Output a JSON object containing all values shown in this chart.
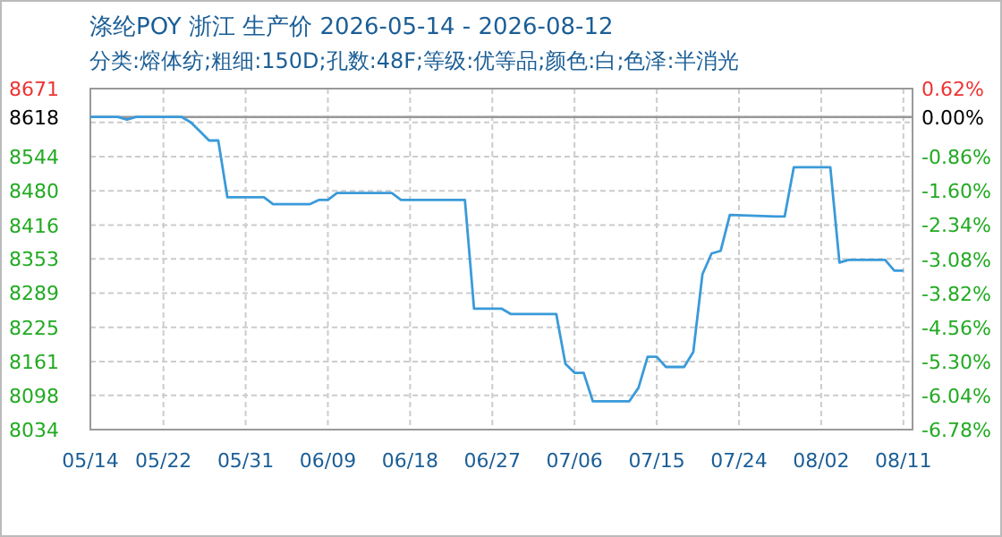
{
  "chart_data": {
    "type": "line",
    "title": "涤纶POY 浙江 生产价 2026-05-14 - 2026-08-12",
    "subtitle": "分类:熔体纺;粗细:150D;孔数:48F;等级:优等品;颜色:白;色泽:半消光",
    "x": [
      "2026-05-14",
      "2026-05-17",
      "2026-05-18",
      "2026-05-19",
      "2026-05-24",
      "2026-05-25",
      "2026-05-26",
      "2026-05-27",
      "2026-05-28",
      "2026-05-29",
      "2026-06-02",
      "2026-06-03",
      "2026-06-07",
      "2026-06-08",
      "2026-06-09",
      "2026-06-10",
      "2026-06-16",
      "2026-06-17",
      "2026-06-24",
      "2026-06-25",
      "2026-06-28",
      "2026-06-29",
      "2026-07-04",
      "2026-07-05",
      "2026-07-06",
      "2026-07-07",
      "2026-07-08",
      "2026-07-12",
      "2026-07-13",
      "2026-07-14",
      "2026-07-15",
      "2026-07-16",
      "2026-07-18",
      "2026-07-19",
      "2026-07-20",
      "2026-07-21",
      "2026-07-22",
      "2026-07-23",
      "2026-07-28",
      "2026-07-29",
      "2026-07-30",
      "2026-08-03",
      "2026-08-04",
      "2026-08-05",
      "2026-08-09",
      "2026-08-10",
      "2026-08-11"
    ],
    "series": [
      {
        "color": "#3a9ad9",
        "values": [
          8618,
          8618,
          8613,
          8618,
          8618,
          8608,
          8591,
          8574,
          8574,
          8468,
          8468,
          8455,
          8455,
          8463,
          8463,
          8476,
          8476,
          8463,
          8463,
          8260,
          8260,
          8250,
          8250,
          8157,
          8140,
          8140,
          8087,
          8087,
          8112,
          8170,
          8170,
          8151,
          8151,
          8179,
          8324,
          8363,
          8368,
          8435,
          8432,
          8432,
          8524,
          8524,
          8346,
          8351,
          8351,
          8331,
          8331
        ]
      }
    ],
    "xlim": [
      "2026-05-14",
      "2026-08-12"
    ],
    "xticks": [
      {
        "value": "2026-05-14",
        "label": "05/14"
      },
      {
        "value": "2026-05-22",
        "label": "05/22"
      },
      {
        "value": "2026-05-31",
        "label": "05/31"
      },
      {
        "value": "2026-06-09",
        "label": "06/09"
      },
      {
        "value": "2026-06-18",
        "label": "06/18"
      },
      {
        "value": "2026-06-27",
        "label": "06/27"
      },
      {
        "value": "2026-07-06",
        "label": "07/06"
      },
      {
        "value": "2026-07-15",
        "label": "07/15"
      },
      {
        "value": "2026-07-24",
        "label": "07/24"
      },
      {
        "value": "2026-08-02",
        "label": "08/02"
      },
      {
        "value": "2026-08-11",
        "label": "08/11"
      }
    ],
    "ylim": [
      8034,
      8671
    ],
    "yticks": [
      8034,
      8098,
      8161,
      8225,
      8289,
      8353,
      8416,
      8480,
      8544,
      {
        "value": 8608,
        "label": null
      },
      8618,
      8671
    ],
    "y2lim": [
      -6.78,
      0.62
    ],
    "y2ticks": [
      {
        "value": -6.78,
        "label": "-6.78%"
      },
      {
        "value": -6.04,
        "label": "-6.04%"
      },
      {
        "value": -5.3,
        "label": "-5.30%"
      },
      {
        "value": -4.56,
        "label": "-4.56%"
      },
      {
        "value": -3.82,
        "label": "-3.82%"
      },
      {
        "value": -3.08,
        "label": "-3.08%"
      },
      {
        "value": -2.34,
        "label": "-2.34%"
      },
      {
        "value": -1.6,
        "label": "-1.60%"
      },
      {
        "value": -0.86,
        "label": "-0.86%"
      },
      {
        "value": 0,
        "label": "0.00%"
      },
      {
        "value": 0.62,
        "label": "0.62%"
      }
    ],
    "ref_lines": [
      {
        "axis": "y",
        "value": 8618,
        "color": "#999999"
      }
    ],
    "grid": true,
    "marker": "none",
    "line_style": "solid"
  }
}
